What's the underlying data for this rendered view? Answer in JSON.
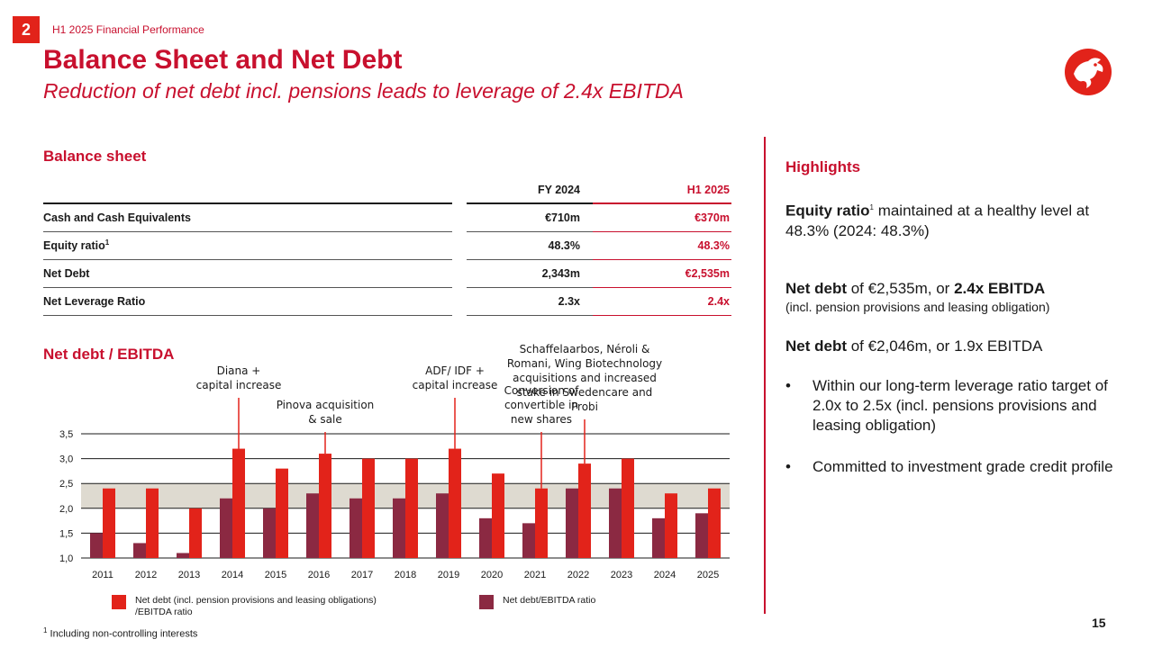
{
  "header": {
    "section_number": "2",
    "section_label": "H1 2025 Financial Performance",
    "title": "Balance Sheet and Net Debt",
    "subtitle": "Reduction of net debt incl. pensions leads to leverage of 2.4x EBITDA"
  },
  "balance_sheet": {
    "heading": "Balance sheet",
    "columns": [
      "FY 2024",
      "H1 2025"
    ],
    "rows": [
      {
        "label": "Cash and Cash Equivalents",
        "sup": "",
        "fy2024": "€710m",
        "h12025": "€370m"
      },
      {
        "label": "Equity ratio",
        "sup": "1",
        "fy2024": "48.3%",
        "h12025": "48.3%"
      },
      {
        "label": "Net Debt",
        "sup": "",
        "fy2024": "2,343m",
        "h12025": "€2,535m"
      },
      {
        "label": "Net Leverage Ratio",
        "sup": "",
        "fy2024": "2.3x",
        "h12025": "2.4x"
      }
    ]
  },
  "highlights": {
    "heading": "Highlights",
    "p1_bold": "Equity ratio",
    "p1_sup": "1",
    "p1_rest": " maintained at a healthy level at 48.3% (2024: 48.3%)",
    "p2_bold1": "Net debt",
    "p2_mid": " of €2,535m, or ",
    "p2_bold2": "2.4x EBITDA",
    "p2_small": "(incl. pension provisions and leasing obligation)",
    "p3_bold": "Net debt",
    "p3_rest": " of €2,046m, or 1.9x EBITDA",
    "bullet_char": "•",
    "bullet1": "Within our long-term leverage ratio target of 2.0x to 2.5x (incl. pensions provisions and leasing obligation)",
    "bullet2": "Committed to investment grade credit profile"
  },
  "chart_data": {
    "type": "bar",
    "title": "Net debt / EBITDA",
    "categories": [
      "2011",
      "2012",
      "2013",
      "2014",
      "2015",
      "2016",
      "2017",
      "2018",
      "2019",
      "2020",
      "2021",
      "2022",
      "2023",
      "2024",
      "2025"
    ],
    "series": [
      {
        "name": "Net debt/EBITDA ratio",
        "color": "#8b2942",
        "values": [
          1.5,
          1.3,
          1.1,
          2.2,
          2.0,
          2.3,
          2.2,
          2.2,
          2.3,
          1.8,
          1.7,
          2.4,
          2.4,
          1.8,
          1.9
        ]
      },
      {
        "name": "Net debt (incl. pension provisions and leasing obligations) /EBITDA ratio",
        "color": "#e2231a",
        "values": [
          2.4,
          2.4,
          2.0,
          3.2,
          2.8,
          3.1,
          3.0,
          3.0,
          3.2,
          2.7,
          2.4,
          2.9,
          3.0,
          2.3,
          2.4
        ]
      }
    ],
    "ylim": [
      1.0,
      3.5
    ],
    "yticks": [
      "1,0",
      "1,5",
      "2,0",
      "2,5",
      "3,0",
      "3,5"
    ],
    "yticks_values": [
      1.0,
      1.5,
      2.0,
      2.5,
      3.0,
      3.5
    ],
    "target_band": [
      2.0,
      2.5
    ],
    "band_color": "#dedad0",
    "annotations": [
      {
        "text": "Diana +\ncapital increase",
        "category": "2014",
        "value": 3.2
      },
      {
        "text": "Pinova acquisition\n& sale",
        "category": "2016",
        "value": 3.1
      },
      {
        "text": "ADF/ IDF +\ncapital increase",
        "category": "2019",
        "value": 3.2
      },
      {
        "text": "Conversion of\nconvertible in\nnew shares",
        "category": "2021",
        "value": 2.4
      },
      {
        "text": "Schaffelaarbos, Néroli &\nRomani, Wing Biotechnology\nacquisitions and increased\nstake in Swedencare and\nProbi",
        "category": "2022",
        "value": 2.9
      }
    ],
    "legend": [
      {
        "label": "Net debt (incl. pension provisions and leasing obligations)\n/EBITDA ratio",
        "color": "#e2231a"
      },
      {
        "label": "Net debt/EBITDA ratio",
        "color": "#8b2942"
      }
    ]
  },
  "footnote": "Including non-controlling interests",
  "footnote_sup": "1",
  "page_number": "15"
}
